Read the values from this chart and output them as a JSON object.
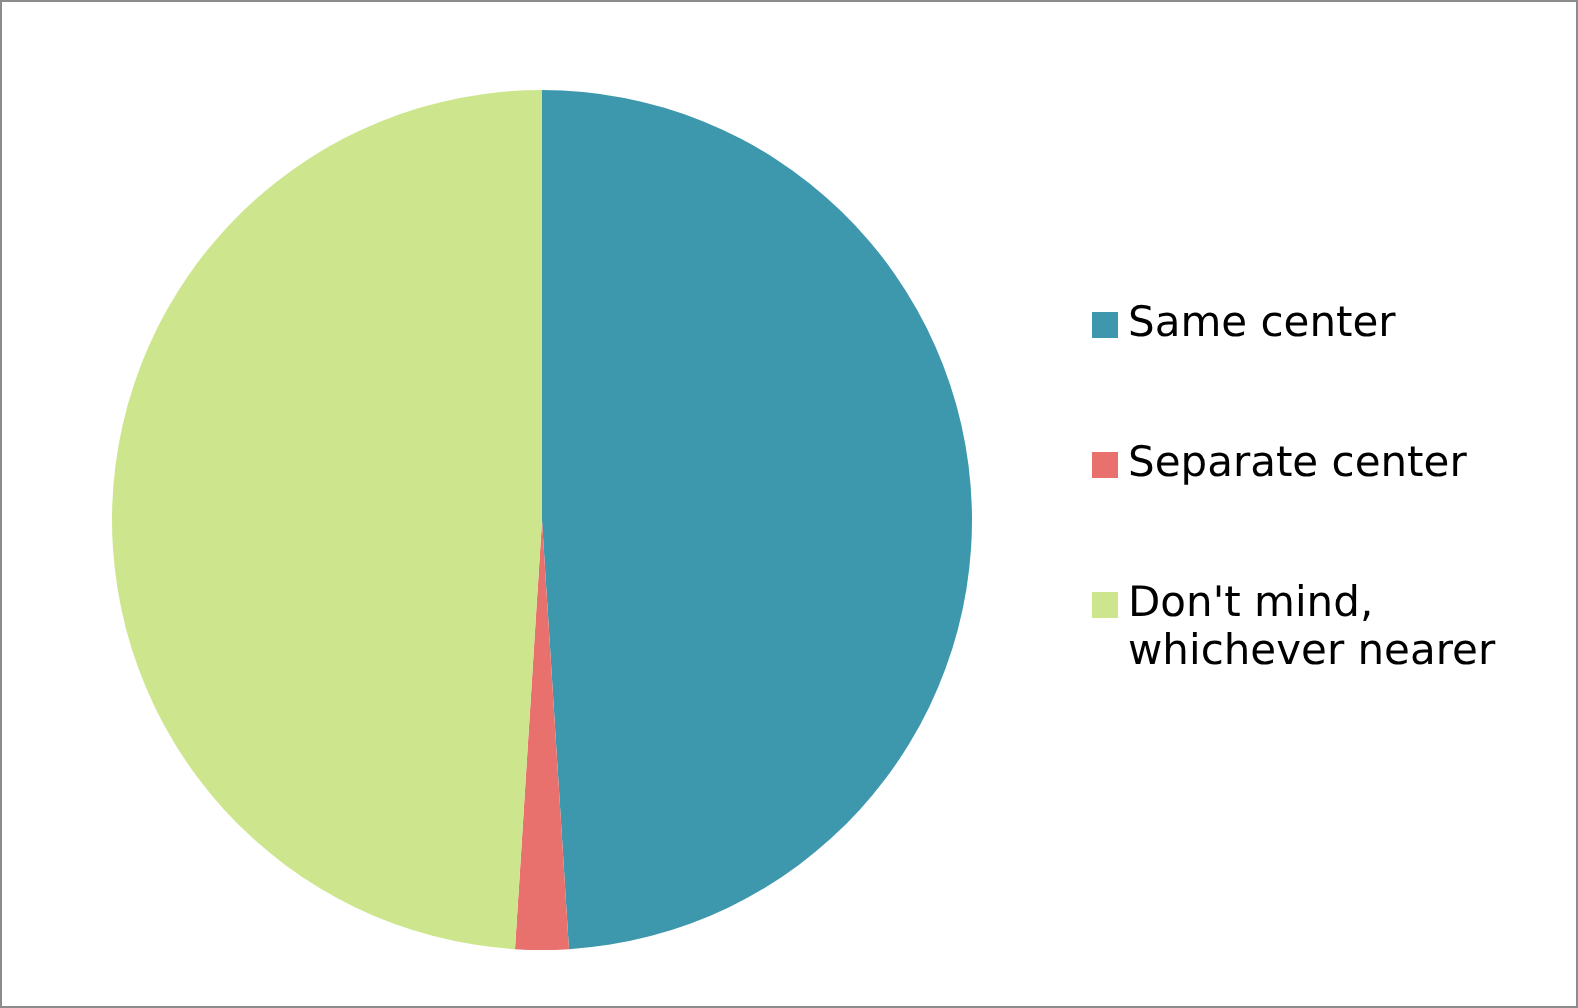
{
  "chart_data": {
    "type": "pie",
    "categories": [
      "Same center",
      "Separate center",
      "Don't mind, whichever nearer"
    ],
    "values": [
      49,
      2,
      49
    ],
    "colors": [
      "#3d97ad",
      "#e8716d",
      "#cde68e"
    ],
    "legend": "right"
  }
}
